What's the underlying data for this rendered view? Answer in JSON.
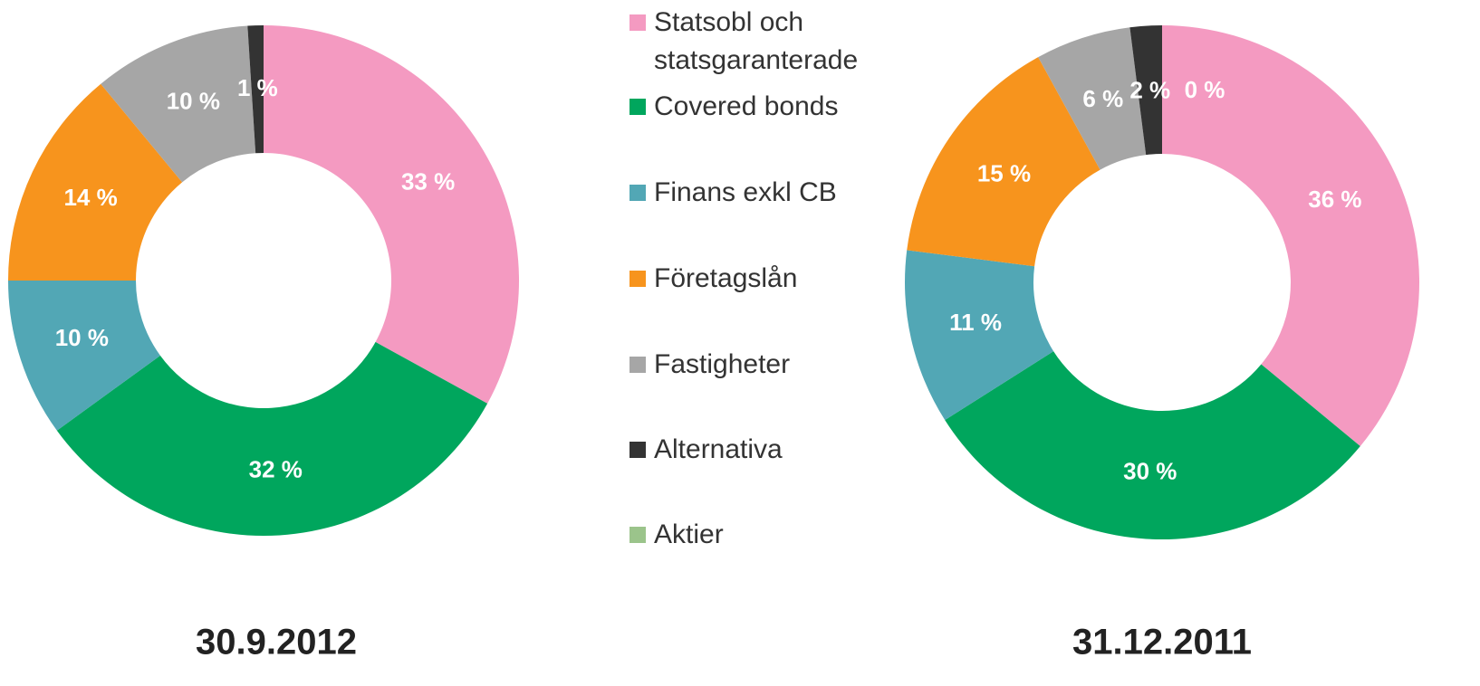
{
  "chart_data": {
    "type": "donut",
    "categories": [
      "Statsobl och statsgaranterade",
      "Covered bonds",
      "Finans exkl CB",
      "Företagslån",
      "Fastigheter",
      "Alternativa",
      "Aktier"
    ],
    "colors": [
      "#f49ac1",
      "#00a65d",
      "#52a7b5",
      "#f7941d",
      "#a6a6a6",
      "#333333",
      "#9bc48b"
    ],
    "series": [
      {
        "name": "30.9.2012",
        "values": [
          33,
          32,
          10,
          14,
          10,
          1,
          0
        ],
        "value_labels": [
          "33 %",
          "32 %",
          "10 %",
          "14 %",
          "10 %",
          "1 %",
          null
        ]
      },
      {
        "name": "31.12.2011",
        "values": [
          36,
          30,
          11,
          15,
          6,
          2,
          0
        ],
        "value_labels": [
          "36 %",
          "30 %",
          "11 %",
          "15 %",
          "6 %",
          "2 %",
          "0 %"
        ]
      }
    ]
  }
}
